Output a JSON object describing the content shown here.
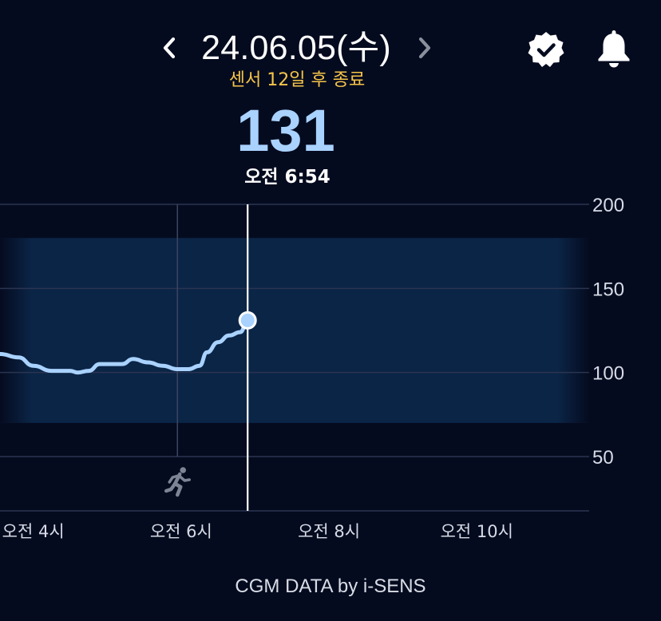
{
  "header": {
    "date": "24.06.05(수)",
    "sensor_status": "센서 12일 후 종료",
    "prev_icon": "chevron-left-icon",
    "next_icon": "chevron-right-icon",
    "verified_icon": "verified-badge-icon",
    "notification_icon": "bell-icon"
  },
  "reading": {
    "value": "131",
    "time": "오전 6:54"
  },
  "chart_data": {
    "type": "line",
    "title": "",
    "xlabel": "",
    "ylabel": "",
    "ylim": [
      20,
      200
    ],
    "yticks": [
      {
        "value": 200,
        "label": "200"
      },
      {
        "value": 150,
        "label": "150"
      },
      {
        "value": 100,
        "label": "100"
      },
      {
        "value": 50,
        "label": "50"
      }
    ],
    "xticks": [
      {
        "hour": 4,
        "label": "오전 4시"
      },
      {
        "hour": 6,
        "label": "오전 6시"
      },
      {
        "hour": 8,
        "label": "오전 8시"
      },
      {
        "hour": 10,
        "label": "오전 10시"
      }
    ],
    "xlim_hours": [
      3.55,
      11.5
    ],
    "target_range": [
      70,
      180
    ],
    "grid": true,
    "series": [
      {
        "x_hours": [
          3.55,
          3.8,
          4.0,
          4.25,
          4.5,
          4.6,
          4.75,
          4.9,
          5.05,
          5.2,
          5.35,
          5.55,
          5.75,
          5.95,
          6.1,
          6.25,
          6.35,
          6.5,
          6.65,
          6.8,
          6.9
        ],
        "values": [
          111,
          109,
          104,
          101,
          101,
          100,
          101,
          105,
          105,
          105,
          108,
          106,
          104,
          102,
          102,
          104,
          112,
          118,
          122,
          124,
          131
        ]
      }
    ],
    "current_point": {
      "x_hours": 6.9,
      "value": 131
    },
    "event_marker": {
      "x_hours": 5.95,
      "icon": "running-person-icon"
    }
  },
  "colors": {
    "background": "#050b1f",
    "target_band": "#0b2547",
    "line": "#a9d2ff",
    "accent_yellow": "#f6c64a",
    "grid": "#2a3450"
  },
  "footer": {
    "credit": "CGM DATA by i-SENS"
  }
}
